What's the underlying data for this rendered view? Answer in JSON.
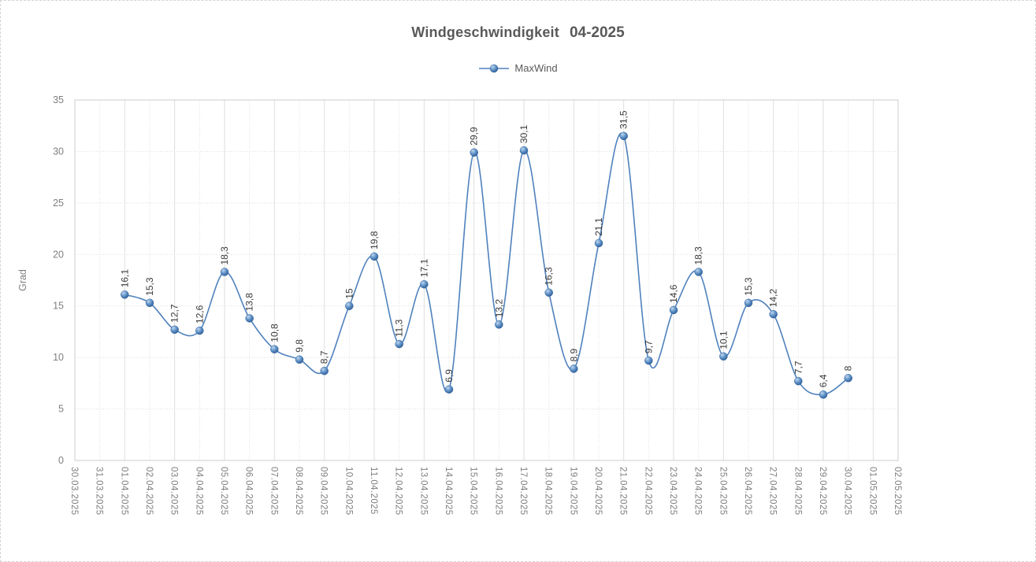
{
  "chart_data": {
    "type": "line",
    "title": "Windgeschwindigkeit 04-2025",
    "title_parts": {
      "main": "Windgeschwindigkeit",
      "period": "04-2025"
    },
    "legend": {
      "position": "top",
      "entries": [
        "MaxWind"
      ]
    },
    "ylabel": "Grad",
    "xlabel": "",
    "ylim": [
      0,
      35
    ],
    "ytick_step": 5,
    "yticks": [
      0,
      5,
      10,
      15,
      20,
      25,
      30,
      35
    ],
    "grid": {
      "horizontal": "dotted",
      "vertical_major": "solid",
      "vertical_minor": "dotted"
    },
    "categories": [
      "30.03.2025",
      "31.03.2025",
      "01.04.2025",
      "02.04.2025",
      "03.04.2025",
      "04.04.2025",
      "05.04.2025",
      "06.04.2025",
      "07.04.2025",
      "08.04.2025",
      "09.04.2025",
      "10.04.2025",
      "11.04.2025",
      "12.04.2025",
      "13.04.2025",
      "14.04.2025",
      "15.04.2025",
      "16.04.2025",
      "17.04.2025",
      "18.04.2025",
      "19.04.2025",
      "20.04.2025",
      "21.04.2025",
      "22.04.2025",
      "23.04.2025",
      "24.04.2025",
      "25.04.2025",
      "26.04.2025",
      "27.04.2025",
      "28.04.2025",
      "29.04.2025",
      "30.04.2025",
      "01.05.2025",
      "02.05.2025"
    ],
    "series": [
      {
        "name": "MaxWind",
        "first_point_category_index": 2,
        "values": [
          16.1,
          15.3,
          12.7,
          12.6,
          18.3,
          13.8,
          10.8,
          9.8,
          8.7,
          15,
          19.8,
          11.3,
          17.1,
          6.9,
          29.9,
          13.2,
          30.1,
          16.3,
          8.9,
          21.1,
          31.5,
          9.7,
          14.6,
          18.3,
          10.1,
          15.3,
          14.2,
          7.7,
          6.4,
          8
        ],
        "labels": [
          "16,1",
          "15,3",
          "12,7",
          "12,6",
          "18,3",
          "13,8",
          "10,8",
          "9,8",
          "8,7",
          "15",
          "19,8",
          "11,3",
          "17,1",
          "6,9",
          "29,9",
          "13,2",
          "30,1",
          "16,3",
          "8,9",
          "21,1",
          "31,5",
          "9,7",
          "14,6",
          "18,3",
          "10,1",
          "15,3",
          "14,2",
          "7,7",
          "6,4",
          "8"
        ],
        "smoothed": true
      }
    ],
    "colors": {
      "line": "#4f81bd",
      "marker_light": "#bed6ef",
      "marker_mid": "#5b8ec4",
      "marker_dark": "#2f5c96",
      "marker_stroke": "#35659c",
      "title_text": "#595959",
      "legend_text": "#595959",
      "axis_text": "#7f7f7f",
      "data_label_text": "#3a3a3a",
      "gridline": "#dedede",
      "plot_border": "#cccccc"
    }
  }
}
